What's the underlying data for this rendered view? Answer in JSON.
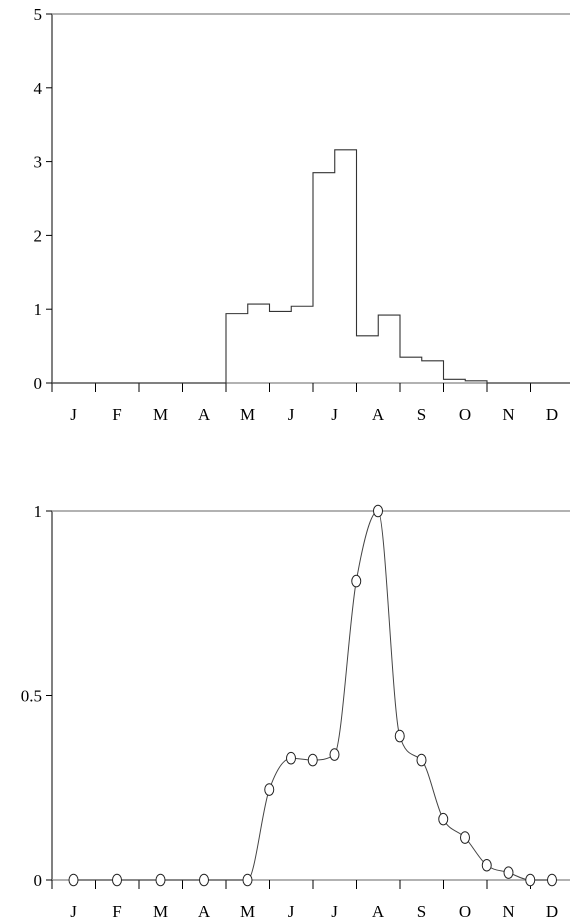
{
  "chart_data": [
    {
      "type": "step",
      "x_categories": [
        "J",
        "F",
        "M",
        "A",
        "M",
        "J",
        "J",
        "A",
        "S",
        "O",
        "N",
        "D"
      ],
      "ylim": [
        0,
        5
      ],
      "y_ticks": [
        "0",
        "1",
        "2",
        "3",
        "4",
        "5"
      ],
      "grid": false,
      "half_month_values": [
        0,
        0,
        0,
        0,
        0,
        0,
        0,
        0,
        0.94,
        1.07,
        0.97,
        1.04,
        2.85,
        3.16,
        0.64,
        0.92,
        0.35,
        0.3,
        0.05,
        0.03,
        0,
        0,
        0,
        0
      ]
    },
    {
      "type": "line",
      "x_categories": [
        "J",
        "F",
        "M",
        "A",
        "M",
        "J",
        "J",
        "A",
        "S",
        "O",
        "N",
        "D"
      ],
      "ylim": [
        0,
        1
      ],
      "y_ticks": [
        "0",
        "0.5",
        "1"
      ],
      "grid": false,
      "x": [
        0,
        1,
        2,
        3,
        4,
        4.5,
        5,
        5.5,
        6,
        6.5,
        7,
        7.5,
        8,
        8.5,
        9,
        9.5,
        10,
        10.5,
        11
      ],
      "y": [
        0,
        0,
        0,
        0,
        0,
        0.245,
        0.33,
        0.325,
        0.34,
        0.81,
        1,
        0.39,
        0.325,
        0.165,
        0.115,
        0.04,
        0.02,
        0,
        0
      ]
    }
  ]
}
